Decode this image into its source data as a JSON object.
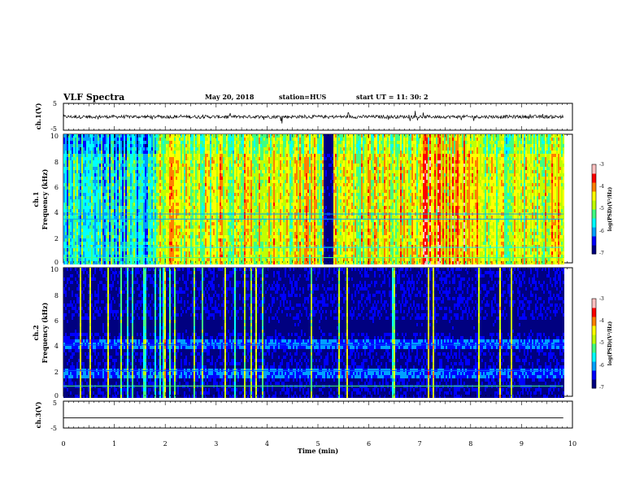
{
  "header": {
    "title": "VLF Spectra",
    "date": "May 20, 2018",
    "station": "station=HUS",
    "start_ut": "start  UT =   11: 30: 2"
  },
  "chart_data": [
    {
      "type": "line",
      "name": "ch1-waveform",
      "ylabel": "ch.1(V)",
      "ylim": [
        -5,
        5
      ],
      "yticks": [
        "5",
        "-5"
      ],
      "x_range": [
        0,
        9.82
      ],
      "approx_level": 0,
      "approx_amplitude": 1.2,
      "color": "#000000"
    },
    {
      "type": "heatmap",
      "name": "ch1-spectrogram",
      "ylabel": "ch.1\nFrequency  (kHz)",
      "ylim": [
        0,
        10
      ],
      "yticks": [
        "0",
        "2",
        "4",
        "6",
        "8",
        "10"
      ],
      "x_range": [
        0,
        9.82
      ],
      "colorbar": {
        "range": [
          -7,
          -3
        ],
        "ticks": [
          "-3",
          "-4",
          "-5",
          "-6",
          "-7"
        ],
        "label": "log(PSD)(V²/Hz)"
      },
      "character": "broadband green/yellow activity, quiet dark-blue gap near 5.2 min, bands near 0.4, 1.2, 3.4 and 3.8 kHz"
    },
    {
      "type": "heatmap",
      "name": "ch2-spectrogram",
      "ylabel": "ch.2\nFrequency  (kHz)",
      "ylim": [
        0,
        10
      ],
      "yticks": [
        "0",
        "2",
        "4",
        "6",
        "8",
        "10"
      ],
      "x_range": [
        0,
        9.82
      ],
      "colorbar": {
        "range": [
          -7,
          -3
        ],
        "ticks": [
          "-3",
          "-4",
          "-5",
          "-6",
          "-7"
        ],
        "label": "log(PSD)(V²/Hz)"
      },
      "character": "mostly dark with sparse vertical sferics, bands near 0.8, 2 and 4 kHz"
    },
    {
      "type": "line",
      "name": "ch3-waveform",
      "ylabel": "ch.3(V)",
      "ylim": [
        -5,
        5
      ],
      "yticks": [
        "5",
        "-5"
      ],
      "x": [
        0,
        9.82
      ],
      "y": [
        -1.2,
        -1.2
      ],
      "color": "#000000"
    }
  ],
  "x_axis": {
    "label": "Time  (min)",
    "range": [
      0,
      10
    ],
    "ticks": [
      "0",
      "1",
      "2",
      "3",
      "4",
      "5",
      "6",
      "7",
      "8",
      "9",
      "10"
    ]
  },
  "colors": {
    "colormap": [
      "#000080",
      "#0000ff",
      "#00a0ff",
      "#00ffff",
      "#40ff80",
      "#c0ff00",
      "#ffff00",
      "#ff8000",
      "#ff0000",
      "#ffc0c0"
    ]
  }
}
